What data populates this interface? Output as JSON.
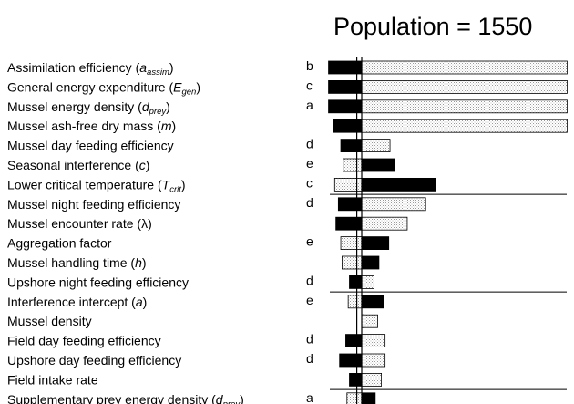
{
  "chart_data": {
    "type": "bar",
    "title": "Population = 1550",
    "orientation": "horizontal",
    "series": [
      {
        "key": "dark",
        "color": "#000000",
        "pattern": "solid"
      },
      {
        "key": "light",
        "color": "#ffffff",
        "pattern": "stipple"
      }
    ],
    "rows": [
      {
        "label": "Assimilation efficiency (",
        "sym": "a",
        "sub": "assim",
        "tail": ")",
        "letter": "b",
        "dark": -0.27,
        "light": 1.67
      },
      {
        "label": "General energy expenditure (",
        "sym": "E",
        "sub": "gen",
        "tail": ")",
        "letter": "c",
        "dark": -0.27,
        "light": 1.67
      },
      {
        "label": "Mussel energy density (",
        "sym": "d",
        "sub": "prey",
        "tail": ")",
        "letter": "a",
        "dark": -0.27,
        "light": 1.67
      },
      {
        "label": "Mussel ash-free dry mass (",
        "sym": "m",
        "sub": "",
        "tail": ")",
        "letter": "",
        "dark": -0.23,
        "light": 1.67
      },
      {
        "label": "Mussel day feeding efficiency",
        "sym": "",
        "sub": "",
        "tail": "",
        "letter": "d",
        "dark": -0.17,
        "light": 0.23
      },
      {
        "label": "Seasonal interference (",
        "sym": "c",
        "sub": "",
        "tail": ")",
        "letter": "e",
        "dark": 0.27,
        "light": -0.15
      },
      {
        "label": "Lower critical temperature (",
        "sym": "T",
        "sub": "crit",
        "tail": ")",
        "letter": "c",
        "dark": 0.6,
        "light": -0.22
      },
      {
        "label": "Mussel night feeding efficiency",
        "sym": "",
        "sub": "",
        "tail": "",
        "letter": "d",
        "dark": -0.19,
        "light": 0.52
      },
      {
        "label": "Mussel encounter rate (λ)",
        "sym": "",
        "sub": "",
        "tail": "",
        "letter": "",
        "dark": -0.21,
        "light": 0.37
      },
      {
        "label": "Aggregation factor",
        "sym": "",
        "sub": "",
        "tail": "",
        "letter": "e",
        "dark": 0.22,
        "light": -0.17
      },
      {
        "label": "Mussel handling time (",
        "sym": "h",
        "sub": "",
        "tail": ")",
        "letter": "",
        "dark": 0.14,
        "light": -0.16
      },
      {
        "label": "Upshore night feeding efficiency",
        "sym": "",
        "sub": "",
        "tail": "",
        "letter": "d",
        "dark": -0.1,
        "light": 0.1
      },
      {
        "label": "Interference intercept (",
        "sym": "a",
        "sub": "",
        "tail": ")",
        "letter": "e",
        "dark": 0.18,
        "light": -0.11
      },
      {
        "label": "Mussel density",
        "sym": "",
        "sub": "",
        "tail": "",
        "letter": "",
        "dark": 0.02,
        "light": 0.13
      },
      {
        "label": "Field day feeding efficiency",
        "sym": "",
        "sub": "",
        "tail": "",
        "letter": "d",
        "dark": -0.13,
        "light": 0.19
      },
      {
        "label": "Upshore day feeding efficiency",
        "sym": "",
        "sub": "",
        "tail": "",
        "letter": "d",
        "dark": -0.18,
        "light": 0.19
      },
      {
        "label": "Field intake rate",
        "sym": "",
        "sub": "",
        "tail": "",
        "letter": "",
        "dark": -0.1,
        "light": 0.16
      },
      {
        "label": "Supplementary prey energy density (",
        "sym": "d",
        "sub": "prey",
        "tail": ")",
        "letter": "a",
        "dark": 0.11,
        "light": -0.12
      }
    ],
    "reference_lines": [
      0,
      -0.04
    ],
    "group_dividers_after": [
      6,
      11,
      16
    ]
  }
}
